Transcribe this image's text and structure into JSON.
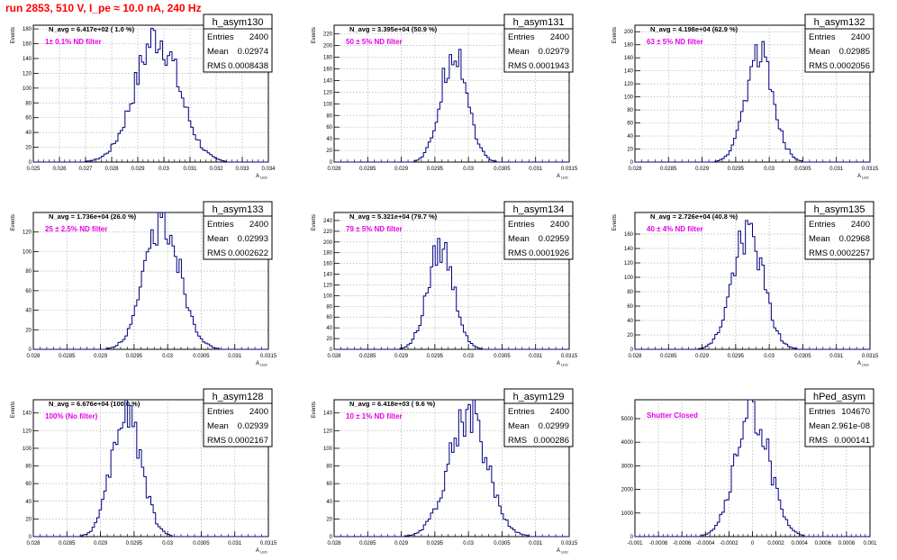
{
  "page": {
    "title": "run 2853,   510 V, I_pe ≈ 10.0 nA, 240 Hz"
  },
  "colors": {
    "histogram": "#000080",
    "annotation": "#e600e6",
    "title_text": "#ff0000",
    "grid": "#b0b0b0"
  },
  "chart_data": [
    {
      "type": "bar",
      "name": "h_asym130",
      "ylabel": "Events",
      "xlabel": "A_LED",
      "stats": {
        "entries": "2400",
        "mean": "0.02974",
        "rms": "0.0008438"
      },
      "navg": "N_avg = 6.417e+02 ( 1.0 %)",
      "note": "1± 0.1% ND filter",
      "xlim": [
        0.025,
        0.034
      ],
      "ylim": [
        0,
        185
      ],
      "xticks": [
        "0.025",
        "0.026",
        "0.027",
        "0.028",
        "0.029",
        "0.03",
        "0.031",
        "0.032",
        "0.033",
        "0.034"
      ],
      "yticks": [
        0,
        20,
        40,
        60,
        80,
        100,
        120,
        140,
        160,
        180
      ],
      "mean": 0.02974,
      "sigma": 0.00084,
      "peak": 170
    },
    {
      "type": "bar",
      "name": "h_asym131",
      "ylabel": "Events",
      "xlabel": "A_LED",
      "stats": {
        "entries": "2400",
        "mean": "0.02979",
        "rms": "0.0001943"
      },
      "navg": "N_avg = 3.395e+04 (50.9 %)",
      "note": "50 ± 5% ND filter",
      "xlim": [
        0.028,
        0.0315
      ],
      "ylim": [
        0,
        235
      ],
      "xticks": [
        "0.028",
        "0.0285",
        "0.029",
        "0.0295",
        "0.03",
        "0.0305",
        "0.031",
        "0.0315"
      ],
      "yticks": [
        0,
        20,
        40,
        60,
        80,
        100,
        120,
        140,
        160,
        180,
        200,
        220
      ],
      "mean": 0.02979,
      "sigma": 0.000194,
      "peak": 195
    },
    {
      "type": "bar",
      "name": "h_asym132",
      "ylabel": "Events",
      "xlabel": "A_LED",
      "stats": {
        "entries": "2400",
        "mean": "0.02985",
        "rms": "0.0002056"
      },
      "navg": "N_avg = 4.198e+04 (62.9 %)",
      "note": "63 ± 5% ND filter",
      "xlim": [
        0.028,
        0.0315
      ],
      "ylim": [
        0,
        210
      ],
      "xticks": [
        "0.028",
        "0.0285",
        "0.029",
        "0.0295",
        "0.03",
        "0.0305",
        "0.031",
        "0.0315"
      ],
      "yticks": [
        0,
        20,
        40,
        60,
        80,
        100,
        120,
        140,
        160,
        180,
        200
      ],
      "mean": 0.02985,
      "sigma": 0.000206,
      "peak": 170
    },
    {
      "type": "bar",
      "name": "h_asym133",
      "ylabel": "Events",
      "xlabel": "A_LED",
      "stats": {
        "entries": "2400",
        "mean": "0.02993",
        "rms": "0.0002622"
      },
      "navg": "N_avg = 1.736e+04 (26.0 %)",
      "note": "25 ± 2.5% ND filter",
      "xlim": [
        0.028,
        0.0315
      ],
      "ylim": [
        0,
        140
      ],
      "xticks": [
        "0.028",
        "0.0285",
        "0.029",
        "0.0295",
        "0.03",
        "0.0305",
        "0.031",
        "0.0315"
      ],
      "yticks": [
        0,
        20,
        40,
        60,
        80,
        100,
        120
      ],
      "mean": 0.02993,
      "sigma": 0.000262,
      "peak": 132
    },
    {
      "type": "bar",
      "name": "h_asym134",
      "ylabel": "Events",
      "xlabel": "A_LED",
      "stats": {
        "entries": "2400",
        "mean": "0.02959",
        "rms": "0.0001926"
      },
      "navg": "N_avg = 5.321e+04 (79.7 %)",
      "note": "79 ± 5% ND filter",
      "xlim": [
        0.028,
        0.0315
      ],
      "ylim": [
        0,
        255
      ],
      "xticks": [
        "0.028",
        "0.0285",
        "0.029",
        "0.0295",
        "0.03",
        "0.0305",
        "0.031",
        "0.0315"
      ],
      "yticks": [
        0,
        20,
        40,
        60,
        80,
        100,
        120,
        140,
        160,
        180,
        200,
        220,
        240
      ],
      "mean": 0.02959,
      "sigma": 0.000193,
      "peak": 190
    },
    {
      "type": "bar",
      "name": "h_asym135",
      "ylabel": "Events",
      "xlabel": "A_LED",
      "stats": {
        "entries": "2400",
        "mean": "0.02968",
        "rms": "0.0002257"
      },
      "navg": "N_avg = 2.726e+04 (40.8 %)",
      "note": "40 ± 4% ND filter",
      "xlim": [
        0.028,
        0.0315
      ],
      "ylim": [
        0,
        190
      ],
      "xticks": [
        "0.028",
        "0.0285",
        "0.029",
        "0.0295",
        "0.03",
        "0.0305",
        "0.031",
        "0.0315"
      ],
      "yticks": [
        0,
        20,
        40,
        60,
        80,
        100,
        120,
        140,
        160
      ],
      "mean": 0.02968,
      "sigma": 0.000226,
      "peak": 165
    },
    {
      "type": "bar",
      "name": "h_asym128",
      "ylabel": "Events",
      "xlabel": "A_LED",
      "stats": {
        "entries": "2400",
        "mean": "0.02939",
        "rms": "0.0002167"
      },
      "navg": "N_avg = 6.676e+04 (100.0 %)",
      "note": "100% (No filter)",
      "xlim": [
        0.028,
        0.0315
      ],
      "ylim": [
        0,
        155
      ],
      "xticks": [
        "0.028",
        "0.0285",
        "0.029",
        "0.0295",
        "0.03",
        "0.0305",
        "0.031",
        "0.0315"
      ],
      "yticks": [
        0,
        20,
        40,
        60,
        80,
        100,
        120,
        140
      ],
      "mean": 0.02939,
      "sigma": 0.000217,
      "peak": 142
    },
    {
      "type": "bar",
      "name": "h_asym129",
      "ylabel": "Events",
      "xlabel": "A_LED",
      "stats": {
        "entries": "2400",
        "mean": "0.02999",
        "rms": "0.000286"
      },
      "navg": "N_avg = 6.418e+03 ( 9.6 %)",
      "note": "10 ± 1% ND filter",
      "xlim": [
        0.028,
        0.0315
      ],
      "ylim": [
        0,
        155
      ],
      "xticks": [
        "0.028",
        "0.0285",
        "0.029",
        "0.0295",
        "0.03",
        "0.0305",
        "0.031",
        "0.0315"
      ],
      "yticks": [
        0,
        20,
        40,
        60,
        80,
        100,
        120,
        140
      ],
      "mean": 0.02999,
      "sigma": 0.000286,
      "peak": 140
    },
    {
      "type": "bar",
      "name": "hPed_asym",
      "ylabel": "",
      "xlabel": "",
      "stats": {
        "entries": "104670",
        "mean": "2.961e-08",
        "rms": "0.000141"
      },
      "navg": "",
      "note": "Shutter Closed",
      "xlim": [
        -0.001,
        0.001
      ],
      "ylim": [
        0,
        5800
      ],
      "xticks": [
        "-0.001",
        "-0.0008",
        "-0.0006",
        "-0.0004",
        "-0.0002",
        "0",
        "0.0002",
        "0.0004",
        "0.0006",
        "0.0008",
        "0.001"
      ],
      "yticks": [
        0,
        1000,
        2000,
        3000,
        4000,
        5000
      ],
      "mean": 0.0,
      "sigma": 0.000141,
      "peak": 5450
    }
  ],
  "stat_labels": {
    "entries": "Entries",
    "mean": "Mean",
    "rms": "RMS"
  }
}
